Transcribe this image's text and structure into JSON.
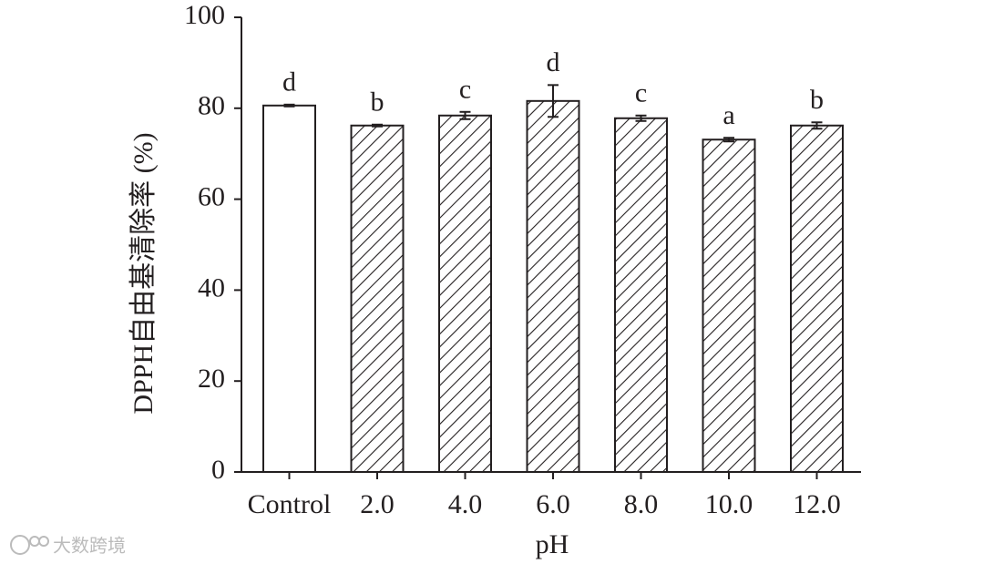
{
  "chart_data": {
    "type": "bar",
    "y_label": "DPPH自由基清除率 (%)",
    "x_label": "pH",
    "categories": [
      "Control",
      "2.0",
      "4.0",
      "6.0",
      "8.0",
      "10.0",
      "12.0"
    ],
    "values": [
      80.6,
      76.2,
      78.4,
      81.6,
      77.8,
      73.1,
      76.2
    ],
    "errors": [
      0.2,
      0.2,
      0.8,
      3.5,
      0.6,
      0.4,
      0.7
    ],
    "annotations": [
      "d",
      "b",
      "c",
      "d",
      "c",
      "a",
      "b"
    ],
    "hatched": [
      false,
      true,
      true,
      true,
      true,
      true,
      true
    ],
    "color": "#231f20",
    "ylim": [
      0,
      100
    ],
    "yticks": [
      0,
      20,
      40,
      60,
      80,
      100
    ],
    "grid": false
  },
  "watermark": "大数跨境"
}
